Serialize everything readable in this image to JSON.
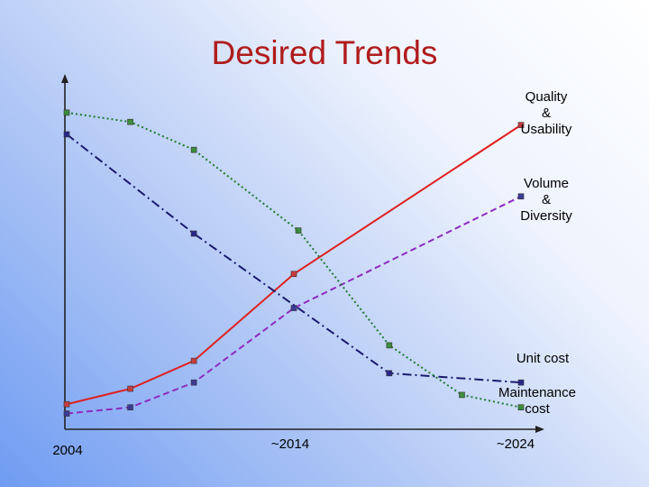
{
  "title": "Desired Trends",
  "chart_data": {
    "type": "line",
    "title": "Desired Trends",
    "xlabel": "",
    "ylabel": "",
    "x_tick_labels": [
      "2004",
      "~2014",
      "~2024"
    ],
    "grid": false,
    "series": [
      {
        "name": "Quality & Usability",
        "label_lines": [
          "Quality",
          "&",
          "Usability"
        ],
        "color": "#e02020",
        "style": "solid",
        "marker": "#c83c3c",
        "points": [
          [
            0,
            0.04
          ],
          [
            0.14,
            0.09
          ],
          [
            0.28,
            0.18
          ],
          [
            0.5,
            0.46
          ],
          [
            1.0,
            0.94
          ]
        ]
      },
      {
        "name": "Volume & Diversity",
        "label_lines": [
          "Volume",
          "&",
          "Diversity"
        ],
        "color": "#8e2bc0",
        "style": "dashed",
        "marker": "#3c3c96",
        "points": [
          [
            0,
            0.01
          ],
          [
            0.14,
            0.03
          ],
          [
            0.28,
            0.11
          ],
          [
            0.5,
            0.35
          ],
          [
            1.0,
            0.71
          ]
        ]
      },
      {
        "name": "Unit cost",
        "label_lines": [
          "Unit cost"
        ],
        "color": "#1a1a6e",
        "style": "dashdot",
        "marker": "#28288c",
        "points": [
          [
            0,
            0.91
          ],
          [
            0.28,
            0.59
          ],
          [
            0.71,
            0.14
          ],
          [
            1.0,
            0.11
          ]
        ]
      },
      {
        "name": "Maintenance cost",
        "label_lines": [
          "Maintenance",
          "cost"
        ],
        "color": "#1e7a30",
        "style": "dotted",
        "marker": "#3c8c3c",
        "points": [
          [
            0,
            0.98
          ],
          [
            0.14,
            0.95
          ],
          [
            0.28,
            0.86
          ],
          [
            0.51,
            0.6
          ],
          [
            0.71,
            0.23
          ],
          [
            0.87,
            0.07
          ],
          [
            1.0,
            0.03
          ]
        ]
      }
    ]
  }
}
